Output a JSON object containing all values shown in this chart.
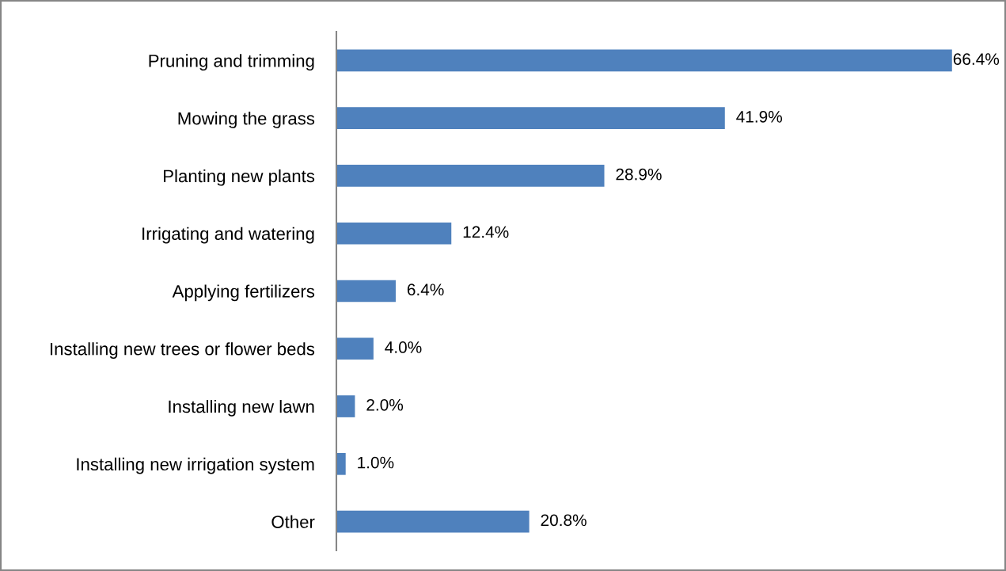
{
  "chart_data": {
    "type": "bar",
    "orientation": "horizontal",
    "categories": [
      "Pruning and trimming",
      "Mowing the grass",
      "Planting new plants",
      "Irrigating and watering",
      "Applying fertilizers",
      "Installing new trees or flower beds",
      "Installing new lawn",
      "Installing new irrigation system",
      "Other"
    ],
    "values": [
      66.4,
      41.9,
      28.9,
      12.4,
      6.4,
      4.0,
      2.0,
      1.0,
      20.8
    ],
    "value_labels": [
      "66.4%",
      "41.9%",
      "28.9%",
      "12.4%",
      "6.4%",
      "4.0%",
      "2.0%",
      "1.0%",
      "20.8%"
    ],
    "color": "#4f81bd",
    "tick_labels": "y",
    "grid": false,
    "legend": false
  }
}
